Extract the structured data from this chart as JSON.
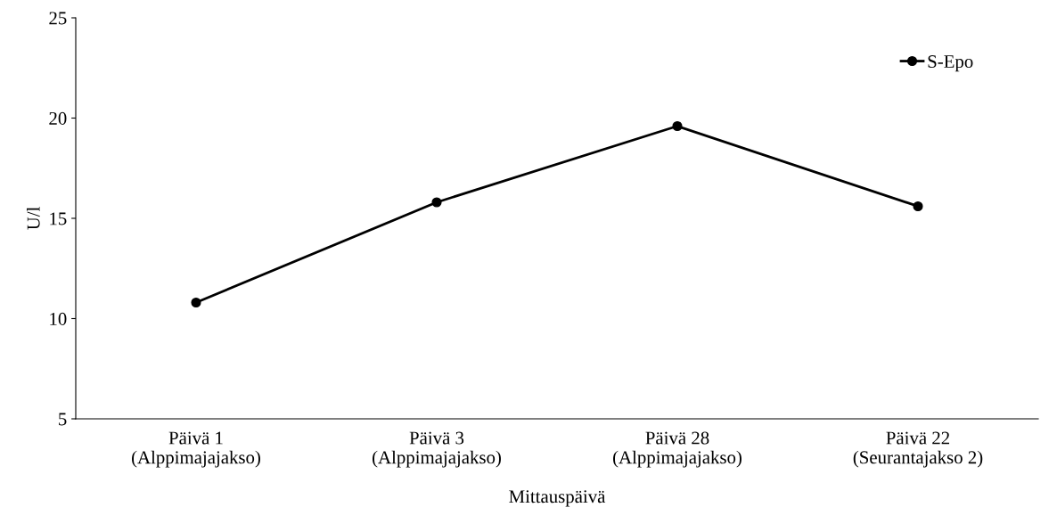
{
  "chart_data": {
    "type": "line",
    "xlabel": "Mittauspäivä",
    "ylabel": "U/l",
    "categories": [
      "Päivä 1\n(Alppimajajakso)",
      "Päivä 3\n(Alppimajajakso)",
      "Päivä 28\n(Alppimajajakso)",
      "Päivä 22\n(Seurantajakso 2)"
    ],
    "series": [
      {
        "name": "S-Epo",
        "color": "#000000",
        "values": [
          10.8,
          15.8,
          19.6,
          15.6
        ]
      }
    ],
    "ylim": [
      5,
      25
    ],
    "yticks": [
      5,
      10,
      15,
      20,
      25
    ],
    "grid": false,
    "legend": "top right",
    "marker": "circle",
    "line_style": "solid"
  }
}
